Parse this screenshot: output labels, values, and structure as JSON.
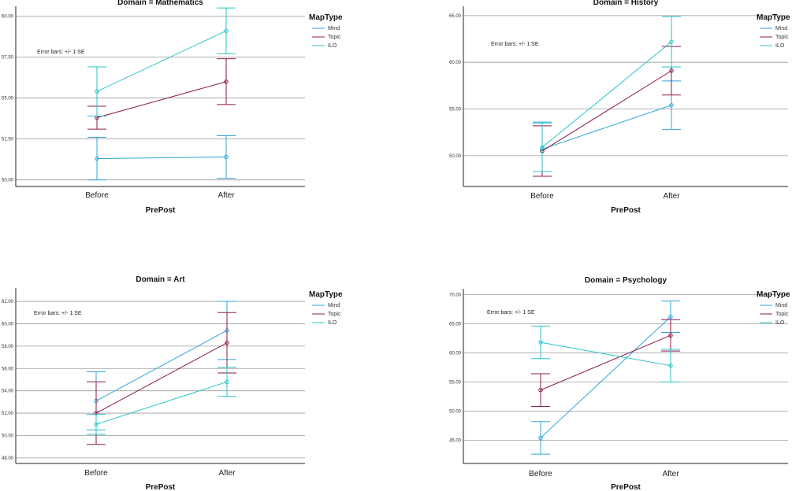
{
  "chart_data": [
    {
      "type": "line",
      "title": "Domain = Mathematics",
      "xlabel": "PrePost",
      "categories": [
        "Before",
        "After"
      ],
      "yticks": [
        "50.00",
        "52.50",
        "55.00",
        "57.50",
        "60.00"
      ],
      "ylim": [
        49.6,
        60.6
      ],
      "note": "Error bars: +/- 1 SE",
      "legend_title": "MapType",
      "series": [
        {
          "name": "Mind",
          "color": "#2fa6d8",
          "values": [
            51.3,
            51.4
          ],
          "se": [
            1.3,
            1.3
          ]
        },
        {
          "name": "Topic",
          "color": "#8b1a4a",
          "values": [
            53.8,
            56.0
          ],
          "se": [
            0.7,
            1.4
          ]
        },
        {
          "name": "ILO",
          "color": "#27c4c9",
          "values": [
            55.4,
            59.1
          ],
          "se": [
            1.5,
            1.4
          ]
        }
      ]
    },
    {
      "type": "line",
      "title": "Domain = History",
      "xlabel": "PrePost",
      "categories": [
        "Before",
        "After"
      ],
      "yticks": [
        "50.00",
        "55.00",
        "60.00",
        "65.00"
      ],
      "ylim": [
        46.7,
        66.0
      ],
      "note": "Error bars: +/- 1 SE",
      "legend_title": "MapType",
      "series": [
        {
          "name": "Mind",
          "color": "#2fa6d8",
          "values": [
            50.7,
            55.4
          ],
          "se": [
            2.9,
            2.6
          ]
        },
        {
          "name": "Topic",
          "color": "#8b1a4a",
          "values": [
            50.5,
            59.1
          ],
          "se": [
            2.7,
            2.6
          ]
        },
        {
          "name": "ILO",
          "color": "#27c4c9",
          "values": [
            50.9,
            62.2
          ],
          "se": [
            2.6,
            2.7
          ]
        }
      ]
    },
    {
      "type": "line",
      "title": "Domain = Art",
      "xlabel": "PrePost",
      "categories": [
        "Before",
        "After"
      ],
      "yticks": [
        "48.00",
        "50.00",
        "52.00",
        "54.00",
        "56.00",
        "58.00",
        "60.00",
        "62.00"
      ],
      "ylim": [
        47.5,
        63.2
      ],
      "note": "Error bars: +/- 1 SE",
      "legend_title": "MapType",
      "series": [
        {
          "name": "Mind",
          "color": "#2fa6d8",
          "values": [
            53.1,
            59.4
          ],
          "se": [
            2.6,
            2.6
          ]
        },
        {
          "name": "Topic",
          "color": "#8b1a4a",
          "values": [
            52.0,
            58.3
          ],
          "se": [
            2.8,
            2.7
          ]
        },
        {
          "name": "ILO",
          "color": "#27c4c9",
          "values": [
            51.0,
            54.8
          ],
          "se": [
            0.9,
            1.3
          ]
        }
      ]
    },
    {
      "type": "line",
      "title": "Domain = Psychology",
      "xlabel": "PrePost",
      "categories": [
        "Before",
        "After"
      ],
      "yticks": [
        "45.00",
        "50.00",
        "55.00",
        "60.00",
        "65.00",
        "70.00"
      ],
      "ylim": [
        41.0,
        71.0
      ],
      "note": "Error bars: +/- 1 SE",
      "legend_title": "MapType",
      "series": [
        {
          "name": "Mind",
          "color": "#2fa6d8",
          "values": [
            45.4,
            66.2
          ],
          "se": [
            2.8,
            2.7
          ]
        },
        {
          "name": "Topic",
          "color": "#8b1a4a",
          "values": [
            53.6,
            63.0
          ],
          "se": [
            2.8,
            2.7
          ]
        },
        {
          "name": "ILO",
          "color": "#27c4c9",
          "values": [
            61.8,
            57.8
          ],
          "se": [
            2.8,
            2.8
          ]
        }
      ]
    }
  ]
}
